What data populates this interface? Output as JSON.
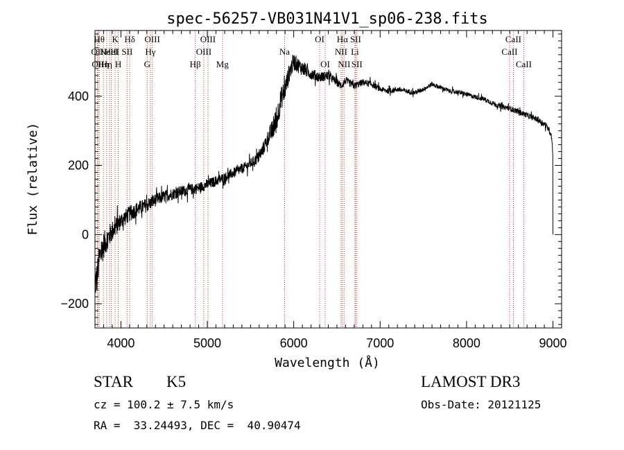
{
  "chart_data": {
    "type": "line",
    "title": "spec-56257-VB031N41V1_sp06-238.fits",
    "xlabel": "Wavelength (Å)",
    "ylabel": "Flux (relative)",
    "xlim": [
      3700,
      9100
    ],
    "ylim": [
      -270,
      590
    ],
    "xticks": [
      4000,
      5000,
      6000,
      7000,
      8000,
      9000
    ],
    "xtick_labels": [
      "4000",
      "5000",
      "6000",
      "7000",
      "8000",
      "9000"
    ],
    "yticks": [
      -200,
      0,
      200,
      400
    ],
    "ytick_labels": [
      "−200",
      "0",
      "200",
      "400"
    ],
    "spectrum_anchors": {
      "x": [
        3700,
        3720,
        3750,
        3800,
        3850,
        3900,
        3950,
        4000,
        4100,
        4200,
        4300,
        4400,
        4500,
        4600,
        4700,
        4800,
        4900,
        5000,
        5100,
        5200,
        5300,
        5400,
        5500,
        5600,
        5650,
        5700,
        5750,
        5800,
        5850,
        5900,
        5950,
        6000,
        6050,
        6100,
        6200,
        6300,
        6400,
        6500,
        6550,
        6600,
        6700,
        6800,
        6900,
        7000,
        7100,
        7200,
        7300,
        7400,
        7500,
        7600,
        7650,
        7700,
        7800,
        7900,
        8000,
        8100,
        8200,
        8300,
        8400,
        8500,
        8600,
        8700,
        8800,
        8900,
        8950,
        8980,
        9000,
        9000
      ],
      "y": [
        -140,
        -130,
        -70,
        -30,
        -10,
        10,
        25,
        40,
        60,
        75,
        85,
        100,
        110,
        118,
        125,
        130,
        135,
        145,
        155,
        165,
        178,
        190,
        205,
        225,
        250,
        280,
        300,
        330,
        390,
        420,
        470,
        500,
        490,
        480,
        465,
        455,
        460,
        440,
        430,
        445,
        430,
        440,
        435,
        420,
        415,
        420,
        415,
        410,
        420,
        435,
        430,
        425,
        415,
        412,
        405,
        398,
        392,
        380,
        370,
        365,
        355,
        345,
        335,
        320,
        305,
        290,
        240,
        0
      ]
    },
    "noise_amplitude": {
      "x": [
        3700,
        3800,
        3900,
        4000,
        4200,
        4500,
        5000,
        5500,
        5700,
        5800,
        5900,
        6000,
        6200,
        6500,
        6800,
        7000,
        7500,
        8000,
        8500,
        9000
      ],
      "amp": [
        90,
        70,
        55,
        45,
        40,
        32,
        28,
        26,
        40,
        70,
        55,
        45,
        30,
        22,
        18,
        15,
        12,
        12,
        14,
        16
      ]
    },
    "line_markers": [
      {
        "wavelength": 3727,
        "label": "OII",
        "row": 2
      },
      {
        "wavelength": 3735,
        "label": "OII",
        "row": 3
      },
      {
        "wavelength": 3750,
        "label": "Hθ",
        "row": 1
      },
      {
        "wavelength": 3798,
        "label": "Hη",
        "row": 3
      },
      {
        "wavelength": 3835,
        "label": "Hη",
        "row": 3
      },
      {
        "wavelength": 3869,
        "label": "NeIII",
        "row": 2
      },
      {
        "wavelength": 3889,
        "label": "HeI",
        "row": 2
      },
      {
        "wavelength": 3934,
        "label": "K",
        "row": 1
      },
      {
        "wavelength": 3969,
        "label": "H",
        "row": 3
      },
      {
        "wavelength": 4072,
        "label": "SII",
        "row": 2
      },
      {
        "wavelength": 4102,
        "label": "Hδ",
        "row": 1
      },
      {
        "wavelength": 4304,
        "label": "G",
        "row": 3
      },
      {
        "wavelength": 4341,
        "label": "Hγ",
        "row": 2
      },
      {
        "wavelength": 4363,
        "label": "OIII",
        "row": 1
      },
      {
        "wavelength": 4861,
        "label": "Hβ",
        "row": 3
      },
      {
        "wavelength": 4959,
        "label": "OIII",
        "row": 2
      },
      {
        "wavelength": 5007,
        "label": "OIII",
        "row": 1
      },
      {
        "wavelength": 5175,
        "label": "Mg",
        "row": 3
      },
      {
        "wavelength": 5894,
        "label": "Na",
        "row": 2
      },
      {
        "wavelength": 6300,
        "label": "OI",
        "row": 1
      },
      {
        "wavelength": 6364,
        "label": "OI",
        "row": 3
      },
      {
        "wavelength": 6548,
        "label": "NII",
        "row": 2
      },
      {
        "wavelength": 6563,
        "label": "Hα",
        "row": 1
      },
      {
        "wavelength": 6583,
        "label": "NII",
        "row": 3
      },
      {
        "wavelength": 6708,
        "label": "Li",
        "row": 2
      },
      {
        "wavelength": 6716,
        "label": "SII",
        "row": 1
      },
      {
        "wavelength": 6731,
        "label": "SII",
        "row": 3
      },
      {
        "wavelength": 8498,
        "label": "CaII",
        "row": 2
      },
      {
        "wavelength": 8542,
        "label": "CaII",
        "row": 1
      },
      {
        "wavelength": 8662,
        "label": "CaII",
        "row": 3
      }
    ]
  },
  "info": {
    "class": "STAR",
    "subclass": "K5",
    "survey": "LAMOST DR3",
    "cz": "cz = 100.2 ± 7.5 km/s",
    "obs_date": "Obs-Date: 20121125",
    "coords": "RA =  33.24493, DEC =  40.90474"
  }
}
